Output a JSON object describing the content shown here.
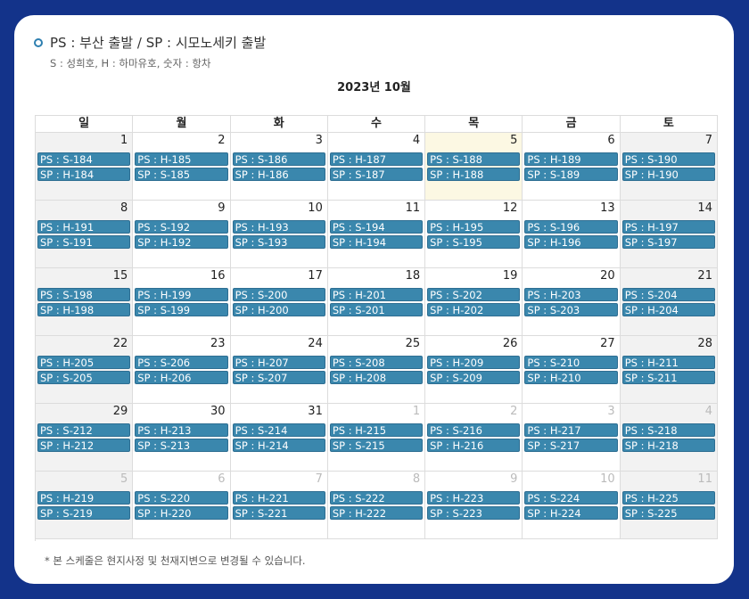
{
  "legend": {
    "title": "PS : 부산 출발 / SP : 시모노세키 출발",
    "subtitle": "S : 성희호, H : 하마유호, 숫자 : 항차"
  },
  "month_title": "2023년 10월",
  "weekdays": [
    "일",
    "월",
    "화",
    "수",
    "목",
    "금",
    "토"
  ],
  "weeks": [
    [
      {
        "day": "1",
        "other": false,
        "today": false,
        "ps": "PS : S-184",
        "sp": "SP : H-184"
      },
      {
        "day": "2",
        "other": false,
        "today": false,
        "ps": "PS : H-185",
        "sp": "SP : S-185"
      },
      {
        "day": "3",
        "other": false,
        "today": false,
        "ps": "PS : S-186",
        "sp": "SP : H-186"
      },
      {
        "day": "4",
        "other": false,
        "today": false,
        "ps": "PS : H-187",
        "sp": "SP : S-187"
      },
      {
        "day": "5",
        "other": false,
        "today": true,
        "ps": "PS : S-188",
        "sp": "SP : H-188"
      },
      {
        "day": "6",
        "other": false,
        "today": false,
        "ps": "PS : H-189",
        "sp": "SP : S-189"
      },
      {
        "day": "7",
        "other": false,
        "today": false,
        "ps": "PS : S-190",
        "sp": "SP : H-190"
      }
    ],
    [
      {
        "day": "8",
        "other": false,
        "today": false,
        "ps": "PS : H-191",
        "sp": "SP : S-191"
      },
      {
        "day": "9",
        "other": false,
        "today": false,
        "ps": "PS : S-192",
        "sp": "SP : H-192"
      },
      {
        "day": "10",
        "other": false,
        "today": false,
        "ps": "PS : H-193",
        "sp": "SP : S-193"
      },
      {
        "day": "11",
        "other": false,
        "today": false,
        "ps": "PS : S-194",
        "sp": "SP : H-194"
      },
      {
        "day": "12",
        "other": false,
        "today": false,
        "ps": "PS : H-195",
        "sp": "SP : S-195"
      },
      {
        "day": "13",
        "other": false,
        "today": false,
        "ps": "PS : S-196",
        "sp": "SP : H-196"
      },
      {
        "day": "14",
        "other": false,
        "today": false,
        "ps": "PS : H-197",
        "sp": "SP : S-197"
      }
    ],
    [
      {
        "day": "15",
        "other": false,
        "today": false,
        "ps": "PS : S-198",
        "sp": "SP : H-198"
      },
      {
        "day": "16",
        "other": false,
        "today": false,
        "ps": "PS : H-199",
        "sp": "SP : S-199"
      },
      {
        "day": "17",
        "other": false,
        "today": false,
        "ps": "PS : S-200",
        "sp": "SP : H-200"
      },
      {
        "day": "18",
        "other": false,
        "today": false,
        "ps": "PS : H-201",
        "sp": "SP : S-201"
      },
      {
        "day": "19",
        "other": false,
        "today": false,
        "ps": "PS : S-202",
        "sp": "SP : H-202"
      },
      {
        "day": "20",
        "other": false,
        "today": false,
        "ps": "PS : H-203",
        "sp": "SP : S-203"
      },
      {
        "day": "21",
        "other": false,
        "today": false,
        "ps": "PS : S-204",
        "sp": "SP : H-204"
      }
    ],
    [
      {
        "day": "22",
        "other": false,
        "today": false,
        "ps": "PS : H-205",
        "sp": "SP : S-205"
      },
      {
        "day": "23",
        "other": false,
        "today": false,
        "ps": "PS : S-206",
        "sp": "SP : H-206"
      },
      {
        "day": "24",
        "other": false,
        "today": false,
        "ps": "PS : H-207",
        "sp": "SP : S-207"
      },
      {
        "day": "25",
        "other": false,
        "today": false,
        "ps": "PS : S-208",
        "sp": "SP : H-208"
      },
      {
        "day": "26",
        "other": false,
        "today": false,
        "ps": "PS : H-209",
        "sp": "SP : S-209"
      },
      {
        "day": "27",
        "other": false,
        "today": false,
        "ps": "PS : S-210",
        "sp": "SP : H-210"
      },
      {
        "day": "28",
        "other": false,
        "today": false,
        "ps": "PS : H-211",
        "sp": "SP : S-211"
      }
    ],
    [
      {
        "day": "29",
        "other": false,
        "today": false,
        "ps": "PS : S-212",
        "sp": "SP : H-212"
      },
      {
        "day": "30",
        "other": false,
        "today": false,
        "ps": "PS : H-213",
        "sp": "SP : S-213"
      },
      {
        "day": "31",
        "other": false,
        "today": false,
        "ps": "PS : S-214",
        "sp": "SP : H-214"
      },
      {
        "day": "1",
        "other": true,
        "today": false,
        "ps": "PS : H-215",
        "sp": "SP : S-215"
      },
      {
        "day": "2",
        "other": true,
        "today": false,
        "ps": "PS : S-216",
        "sp": "SP : H-216"
      },
      {
        "day": "3",
        "other": true,
        "today": false,
        "ps": "PS : H-217",
        "sp": "SP : S-217"
      },
      {
        "day": "4",
        "other": true,
        "today": false,
        "ps": "PS : S-218",
        "sp": "SP : H-218"
      }
    ],
    [
      {
        "day": "5",
        "other": true,
        "today": false,
        "ps": "PS : H-219",
        "sp": "SP : S-219"
      },
      {
        "day": "6",
        "other": true,
        "today": false,
        "ps": "PS : S-220",
        "sp": "SP : H-220"
      },
      {
        "day": "7",
        "other": true,
        "today": false,
        "ps": "PS : H-221",
        "sp": "SP : S-221"
      },
      {
        "day": "8",
        "other": true,
        "today": false,
        "ps": "PS : S-222",
        "sp": "SP : H-222"
      },
      {
        "day": "9",
        "other": true,
        "today": false,
        "ps": "PS : H-223",
        "sp": "SP : S-223"
      },
      {
        "day": "10",
        "other": true,
        "today": false,
        "ps": "PS : S-224",
        "sp": "SP : H-224"
      },
      {
        "day": "11",
        "other": true,
        "today": false,
        "ps": "PS : H-225",
        "sp": "SP : S-225"
      }
    ]
  ],
  "footnote": "* 본 스케줄은 현지사정 및 천재지변으로 변경될 수 있습니다.",
  "colors": {
    "background": "#13338a",
    "event": "#3a87ad",
    "today": "#fcf8e3",
    "weekend": "#f2f2f2"
  }
}
